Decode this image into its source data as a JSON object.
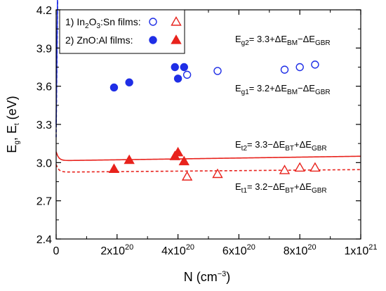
{
  "chart_data": {
    "type": "scatter",
    "xlabel": {
      "main": "N (cm",
      "sup": "−3",
      "tail": ")"
    },
    "ylabel": {
      "a": "E",
      "a_sub": "g",
      "mid": ", E",
      "b_sub": "t",
      "tail": " (eV)"
    },
    "xlim": [
      0,
      1e+21
    ],
    "ylim": [
      2.4,
      4.2
    ],
    "yticks": [
      "2.4",
      "2.7",
      "3.0",
      "3.3",
      "3.6",
      "3.9",
      "4.2"
    ],
    "xticks": [
      {
        "value": 0,
        "mant": "0",
        "exp": ""
      },
      {
        "value": 2e+20,
        "mant": "2x10",
        "exp": "20"
      },
      {
        "value": 4e+20,
        "mant": "4x10",
        "exp": "20"
      },
      {
        "value": 6e+20,
        "mant": "6x10",
        "exp": "20"
      },
      {
        "value": 8e+20,
        "mant": "8x10",
        "exp": "20"
      },
      {
        "value": 1e+21,
        "mant": "1x10",
        "exp": "21"
      }
    ],
    "colors": {
      "blue": "#1f2ee6",
      "red": "#e8221c"
    },
    "legend": {
      "row1": {
        "prefix": "1) In",
        "sub1": "2",
        "mid": "O",
        "sub2": "3",
        "tail": ":Sn films:"
      },
      "row2": {
        "text": "2) ZnO:Al films:"
      }
    },
    "series": [
      {
        "key": "in2o3_eg",
        "marker": "circle-open",
        "color": "#1f2ee6",
        "points": [
          [
            4.3e+20,
            3.69
          ],
          [
            5.3e+20,
            3.72
          ],
          [
            7.5e+20,
            3.73
          ],
          [
            8e+20,
            3.75
          ],
          [
            8.5e+20,
            3.77
          ]
        ]
      },
      {
        "key": "zno_eg",
        "marker": "circle-filled",
        "color": "#1f2ee6",
        "points": [
          [
            1.9e+20,
            3.59
          ],
          [
            2.4e+20,
            3.63
          ],
          [
            3.9e+20,
            3.75
          ],
          [
            4e+20,
            3.66
          ],
          [
            4.2e+20,
            3.75
          ]
        ]
      },
      {
        "key": "in2o3_et",
        "marker": "triangle-open",
        "color": "#e8221c",
        "points": [
          [
            4.3e+20,
            2.89
          ],
          [
            5.3e+20,
            2.91
          ],
          [
            7.5e+20,
            2.94
          ],
          [
            8e+20,
            2.96
          ],
          [
            8.5e+20,
            2.96
          ]
        ]
      },
      {
        "key": "zno_et",
        "marker": "triangle-filled",
        "color": "#e8221c",
        "points": [
          [
            1.9e+20,
            2.95
          ],
          [
            2.4e+20,
            3.02
          ],
          [
            3.9e+20,
            3.05
          ],
          [
            4e+20,
            3.08
          ],
          [
            4.2e+20,
            3.01
          ]
        ]
      }
    ],
    "curves": [
      {
        "key": "eg2",
        "color": "#1f2ee6",
        "style": "solid",
        "model": "bm",
        "base": 3.3,
        "k": 3.72e-08
      },
      {
        "key": "eg1",
        "color": "#1f2ee6",
        "style": "dashed",
        "model": "bm",
        "base": 3.2,
        "k": 3.72e-08
      },
      {
        "key": "et2",
        "color": "#e8221c",
        "style": "solid",
        "model": "bt",
        "base": 3.0,
        "k": 5e-05
      },
      {
        "key": "et1",
        "color": "#e8221c",
        "style": "dashed",
        "model": "bt",
        "base": 2.9,
        "k": 5e-05
      }
    ],
    "annotations": {
      "eg2": {
        "lhs": "E",
        "lhs_sub": "g2",
        "eq": "= 3.3+ΔE",
        "s1": "BM",
        "mid": "−ΔE",
        "s2": "GBR"
      },
      "eg1": {
        "lhs": "E",
        "lhs_sub": "g1",
        "eq": "= 3.2+ΔE",
        "s1": "BM",
        "mid": "−ΔE",
        "s2": "GBR"
      },
      "et2": {
        "lhs": "E",
        "lhs_sub": "t2",
        "eq": "= 3.3−ΔE",
        "s1": "BT",
        "mid": "+ΔE",
        "s2": "GBR"
      },
      "et1": {
        "lhs": "E",
        "lhs_sub": "t1",
        "eq": "= 3.2−ΔE",
        "s1": "BT",
        "mid": "+ΔE",
        "s2": "GBR"
      }
    }
  }
}
